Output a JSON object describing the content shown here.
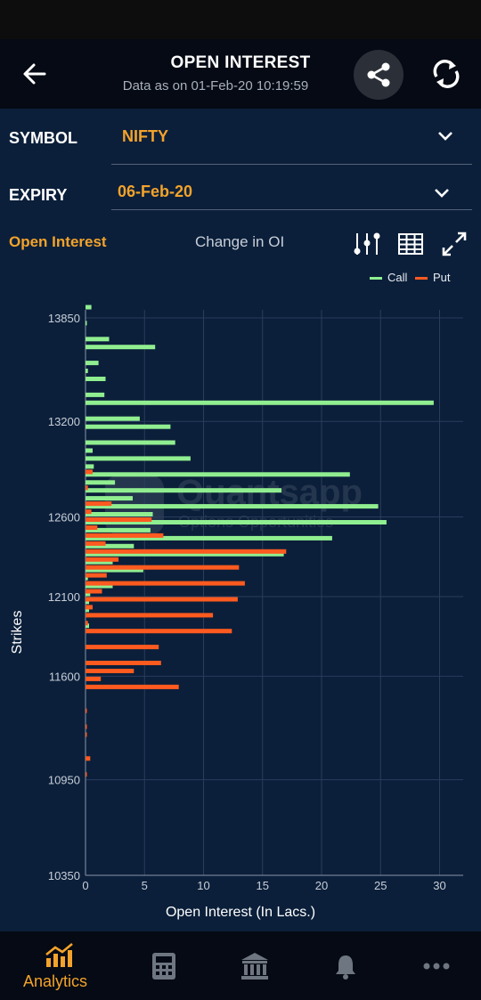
{
  "header": {
    "title": "OPEN INTEREST",
    "subtitle": "Data as on 01-Feb-20 10:19:59"
  },
  "symbol": {
    "label": "SYMBOL",
    "value": "NIFTY"
  },
  "expiry": {
    "label": "EXPIRY",
    "value": "06-Feb-20"
  },
  "tabs": {
    "open_interest": "Open Interest",
    "change_in_oi": "Change in OI"
  },
  "legend": {
    "call": "Call",
    "put": "Put"
  },
  "colors": {
    "call": "#90ee90",
    "put": "#ff5a1f",
    "accent": "#f3a32b",
    "background": "#0b1f3a"
  },
  "watermark": {
    "brand": "Quantsapp",
    "tagline": "Options Opportunities"
  },
  "chart_data": {
    "type": "bar",
    "orientation": "horizontal",
    "xlabel": "Open Interest (In Lacs.)",
    "ylabel": "Strikes",
    "xlim": [
      0,
      32
    ],
    "ylim": [
      10350,
      13900
    ],
    "x_ticks": [
      0,
      5,
      10,
      15,
      20,
      25,
      30
    ],
    "y_ticks": [
      13850,
      13200,
      12600,
      12100,
      11600,
      10950,
      10350
    ],
    "series": [
      {
        "name": "Call",
        "color": "#90ee90",
        "points": [
          [
            13900,
            0.5
          ],
          [
            13800,
            0.1
          ],
          [
            13700,
            2.0
          ],
          [
            13650,
            5.9
          ],
          [
            13550,
            1.1
          ],
          [
            13500,
            0.2
          ],
          [
            13450,
            1.7
          ],
          [
            13350,
            1.6
          ],
          [
            13300,
            29.5
          ],
          [
            13200,
            4.6
          ],
          [
            13150,
            7.2
          ],
          [
            13050,
            7.6
          ],
          [
            13000,
            0.6
          ],
          [
            12950,
            8.9
          ],
          [
            12900,
            0.7
          ],
          [
            12850,
            22.4
          ],
          [
            12800,
            2.5
          ],
          [
            12750,
            16.6
          ],
          [
            12700,
            4.0
          ],
          [
            12650,
            24.8
          ],
          [
            12600,
            5.7
          ],
          [
            12550,
            25.5
          ],
          [
            12500,
            5.5
          ],
          [
            12450,
            20.9
          ],
          [
            12400,
            4.1
          ],
          [
            12350,
            16.8
          ],
          [
            12300,
            2.3
          ],
          [
            12250,
            4.9
          ],
          [
            12200,
            0.2
          ],
          [
            12150,
            2.3
          ],
          [
            12100,
            0.4
          ],
          [
            12050,
            0.3
          ],
          [
            12000,
            0.3
          ],
          [
            11900,
            0.3
          ]
        ]
      },
      {
        "name": "Put",
        "color": "#ff5a1f",
        "points": [
          [
            12900,
            0.6
          ],
          [
            12800,
            0.2
          ],
          [
            12700,
            2.2
          ],
          [
            12650,
            0.5
          ],
          [
            12600,
            5.6
          ],
          [
            12550,
            1.0
          ],
          [
            12500,
            6.6
          ],
          [
            12450,
            1.7
          ],
          [
            12400,
            17.0
          ],
          [
            12350,
            2.8
          ],
          [
            12300,
            13.0
          ],
          [
            12250,
            1.8
          ],
          [
            12200,
            13.5
          ],
          [
            12150,
            1.4
          ],
          [
            12100,
            12.9
          ],
          [
            12050,
            0.6
          ],
          [
            12000,
            10.8
          ],
          [
            11950,
            0.2
          ],
          [
            11900,
            12.4
          ],
          [
            11800,
            6.2
          ],
          [
            11700,
            6.4
          ],
          [
            11650,
            4.1
          ],
          [
            11600,
            1.3
          ],
          [
            11550,
            7.9
          ],
          [
            11400,
            0.1
          ],
          [
            11300,
            0.1
          ],
          [
            11250,
            0.1
          ],
          [
            11100,
            0.4
          ],
          [
            11000,
            0.05
          ]
        ]
      }
    ]
  },
  "nav": {
    "analytics_label": "Analytics"
  }
}
